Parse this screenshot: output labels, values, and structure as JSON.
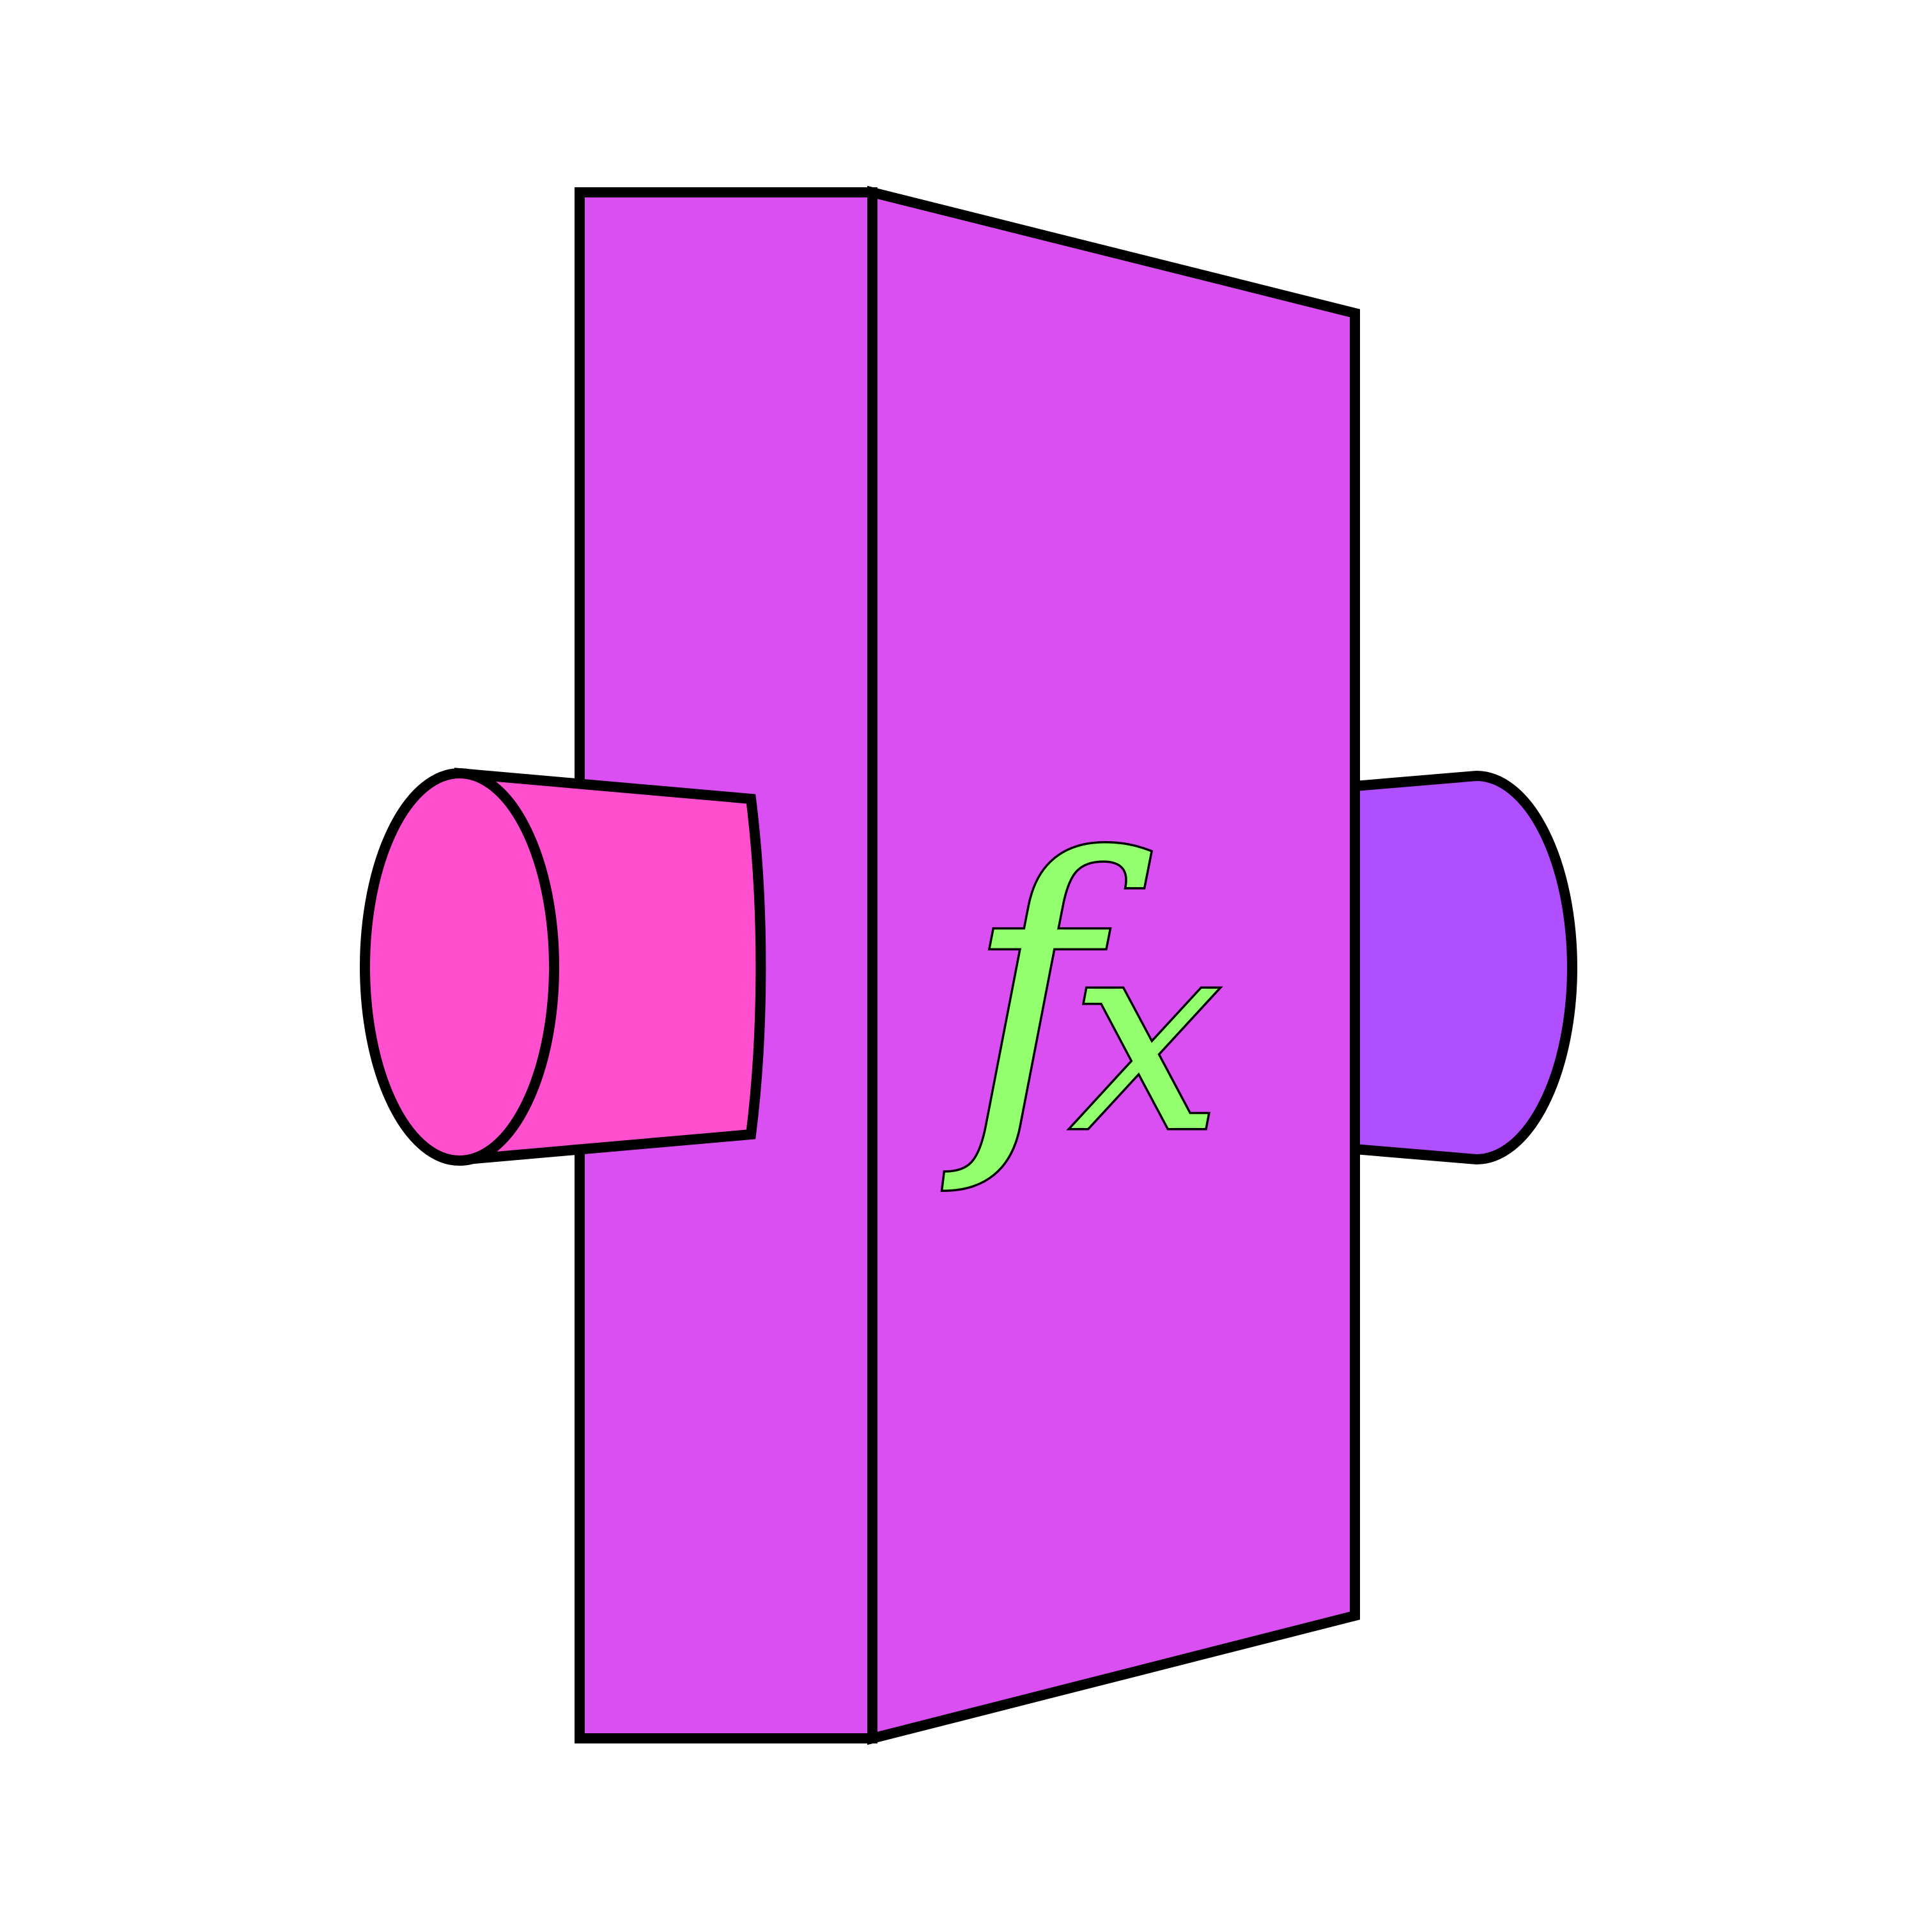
{
  "diagram": {
    "label": "fx",
    "label_f": "f",
    "label_x": "x"
  },
  "colors": {
    "background": "#ffffff",
    "block": "#d94ff2",
    "input_cylinder": "#ff4fcf",
    "output_cylinder": "#b04fff",
    "label_fill": "#93ff6e",
    "outline": "#000000"
  },
  "icons": {
    "block": "function-block-icon",
    "input": "input-cylinder-icon",
    "output": "output-cylinder-icon"
  }
}
